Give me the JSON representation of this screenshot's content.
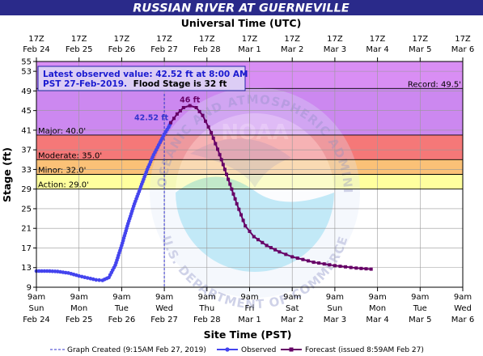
{
  "header": {
    "title": "RUSSIAN RIVER AT GUERNEVILLE"
  },
  "colors": {
    "title_bar": "#2a2a8a",
    "record_band": "#d98ef4",
    "major_band": "#cc88f0",
    "moderate_band": "#f57878",
    "minor_band": "#fbc177",
    "action_band": "#ffff9e",
    "observed": "#4444ee",
    "forecast": "#660066",
    "grid": "#999999"
  },
  "chart_data": {
    "type": "line",
    "top_axis": {
      "title": "Universal Time (UTC)",
      "labels": [
        [
          "17Z",
          "Feb 24"
        ],
        [
          "17Z",
          "Feb 25"
        ],
        [
          "17Z",
          "Feb 26"
        ],
        [
          "17Z",
          "Feb 27"
        ],
        [
          "17Z",
          "Feb 28"
        ],
        [
          "17Z",
          "Mar 1"
        ],
        [
          "17Z",
          "Mar 2"
        ],
        [
          "17Z",
          "Mar 3"
        ],
        [
          "17Z",
          "Mar 4"
        ],
        [
          "17Z",
          "Mar 5"
        ],
        [
          "17Z",
          "Mar 6"
        ]
      ]
    },
    "bottom_axis": {
      "title": "Site Time (PST)",
      "labels": [
        [
          "9am",
          "Sun",
          "Feb 24"
        ],
        [
          "9am",
          "Mon",
          "Feb 25"
        ],
        [
          "9am",
          "Tue",
          "Feb 26"
        ],
        [
          "9am",
          "Wed",
          "Feb 27"
        ],
        [
          "9am",
          "Thu",
          "Feb 28"
        ],
        [
          "9am",
          "Fri",
          "Mar 1"
        ],
        [
          "9am",
          "Sat",
          "Mar 2"
        ],
        [
          "9am",
          "Sun",
          "Mar 3"
        ],
        [
          "9am",
          "Mon",
          "Mar 4"
        ],
        [
          "9am",
          "Tue",
          "Mar 5"
        ],
        [
          "9am",
          "Wed",
          "Mar 6"
        ]
      ]
    },
    "y_axis": {
      "title": "Stage (ft)",
      "ticks": [
        9,
        13,
        17,
        21,
        25,
        29,
        33,
        37,
        41,
        45,
        49,
        53,
        55
      ],
      "ylim": [
        9,
        55
      ]
    },
    "x_range_days": [
      0,
      10
    ],
    "flood_categories": [
      {
        "name": "Record",
        "label": "Record: 49.5'",
        "value": 49.5,
        "upper": 55
      },
      {
        "name": "Major",
        "label": "Major: 40.0'",
        "value": 40.0,
        "upper": 49.5
      },
      {
        "name": "Moderate",
        "label": "Moderate: 35.0'",
        "value": 35.0,
        "upper": 40.0
      },
      {
        "name": "Minor",
        "label": "Minor: 32.0'",
        "value": 32.0,
        "upper": 35.0
      },
      {
        "name": "Action",
        "label": "Action: 29.0'",
        "value": 29.0,
        "upper": 32.0
      }
    ],
    "series": [
      {
        "name": "Observed",
        "points": [
          [
            0.0,
            12.3
          ],
          [
            0.25,
            12.3
          ],
          [
            0.5,
            12.2
          ],
          [
            0.75,
            11.9
          ],
          [
            1.0,
            11.3
          ],
          [
            1.2,
            10.9
          ],
          [
            1.4,
            10.5
          ],
          [
            1.55,
            10.4
          ],
          [
            1.7,
            11.0
          ],
          [
            1.85,
            13.5
          ],
          [
            2.0,
            17.5
          ],
          [
            2.15,
            22.0
          ],
          [
            2.3,
            26.0
          ],
          [
            2.45,
            29.5
          ],
          [
            2.6,
            33.0
          ],
          [
            2.75,
            36.0
          ],
          [
            2.9,
            38.5
          ],
          [
            3.0,
            40.2
          ],
          [
            3.1,
            41.6
          ],
          [
            3.15,
            42.52
          ]
        ]
      },
      {
        "name": "Forecast",
        "points": [
          [
            3.15,
            42.52
          ],
          [
            3.3,
            44.3
          ],
          [
            3.45,
            45.6
          ],
          [
            3.6,
            46.0
          ],
          [
            3.75,
            45.6
          ],
          [
            3.9,
            44.0
          ],
          [
            4.1,
            40.5
          ],
          [
            4.3,
            36.0
          ],
          [
            4.5,
            31.0
          ],
          [
            4.7,
            26.0
          ],
          [
            4.9,
            21.5
          ],
          [
            5.1,
            19.3
          ],
          [
            5.4,
            17.5
          ],
          [
            5.7,
            16.2
          ],
          [
            6.0,
            15.2
          ],
          [
            6.5,
            14.1
          ],
          [
            7.0,
            13.4
          ],
          [
            7.5,
            12.9
          ],
          [
            7.85,
            12.7
          ]
        ]
      }
    ],
    "annotations": {
      "observed_value_label": "42.52 ft",
      "peak_label": "46 ft",
      "peak_day": 3.6,
      "peak_value": 46,
      "created_day": 3.0
    },
    "info_box": {
      "line1": "Latest observed value: 42.52 ft at 8:00 AM",
      "line2_blue": "PST 27-Feb-2019.",
      "line2_black": "Flood Stage is 32  ft"
    },
    "legend": {
      "created": "Graph Created (9:15AM Feb 27, 2019)",
      "observed": "Observed",
      "forecast": "Forecast (issued 8:59AM Feb 27)"
    }
  },
  "watermark": {
    "agency_top": "NATIONAL OCEANIC AND ATMOSPHERIC ADMINISTRATION",
    "agency_bottom": "U.S. DEPARTMENT OF COMMERCE",
    "logo_text": "NOAA"
  }
}
